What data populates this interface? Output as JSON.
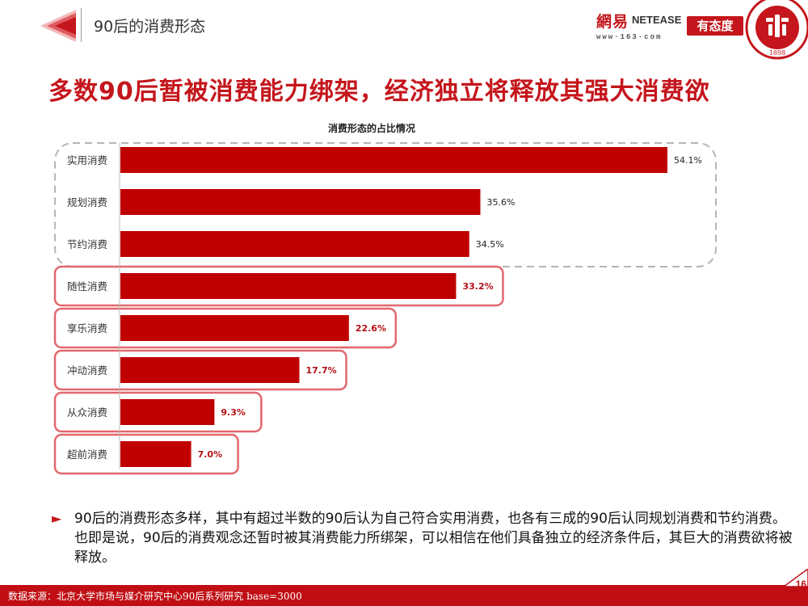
{
  "header": {
    "section_title": "90后的消费形态",
    "logo_netease_cn": "網易",
    "logo_netease_en": "NETEASE",
    "logo_netease_url": "www·163·com",
    "logo_youtaidu": "有态度",
    "logo_pku_year": "1898"
  },
  "headline": "多数90后暂被消费能力绑架，经济独立将释放其强大消费欲",
  "chart_data": {
    "type": "bar",
    "orientation": "horizontal",
    "title": "消费形态的占比情况",
    "categories": [
      "实用消费",
      "规划消费",
      "节约消费",
      "随性消费",
      "享乐消费",
      "冲动消费",
      "从众消费",
      "超前消费"
    ],
    "values": [
      54.1,
      35.6,
      34.5,
      33.2,
      22.6,
      17.7,
      9.3,
      7.0
    ],
    "value_labels": [
      "54.1%",
      "35.6%",
      "34.5%",
      "33.2%",
      "22.6%",
      "17.7%",
      "9.3%",
      "7.0%"
    ],
    "unit": "%",
    "xlim": [
      0,
      60
    ],
    "bar_color": "#c00000",
    "group_dashed": [
      "实用消费",
      "规划消费",
      "节约消费"
    ],
    "group_highlighted": [
      "随性消费",
      "享乐消费",
      "冲动消费",
      "从众消费",
      "超前消费"
    ],
    "highlight_color": "#e2676d"
  },
  "note": {
    "bullet": "►",
    "text": "90后的消费形态多样，其中有超过半数的90后认为自己符合实用消费，也各有三成的90后认同规划消费和节约消费。也即是说，90后的消费观念还暂时被其消费能力所绑架，可以相信在他们具备独立的经济条件后，其巨大的消费欲将被释放。"
  },
  "footer": {
    "source": "数据来源：北京大学市场与媒介研究中心90后系列研究 base=3000",
    "page_number": "16"
  },
  "colors": {
    "brand_red": "#c4161c",
    "footer_red": "#c00e14"
  }
}
